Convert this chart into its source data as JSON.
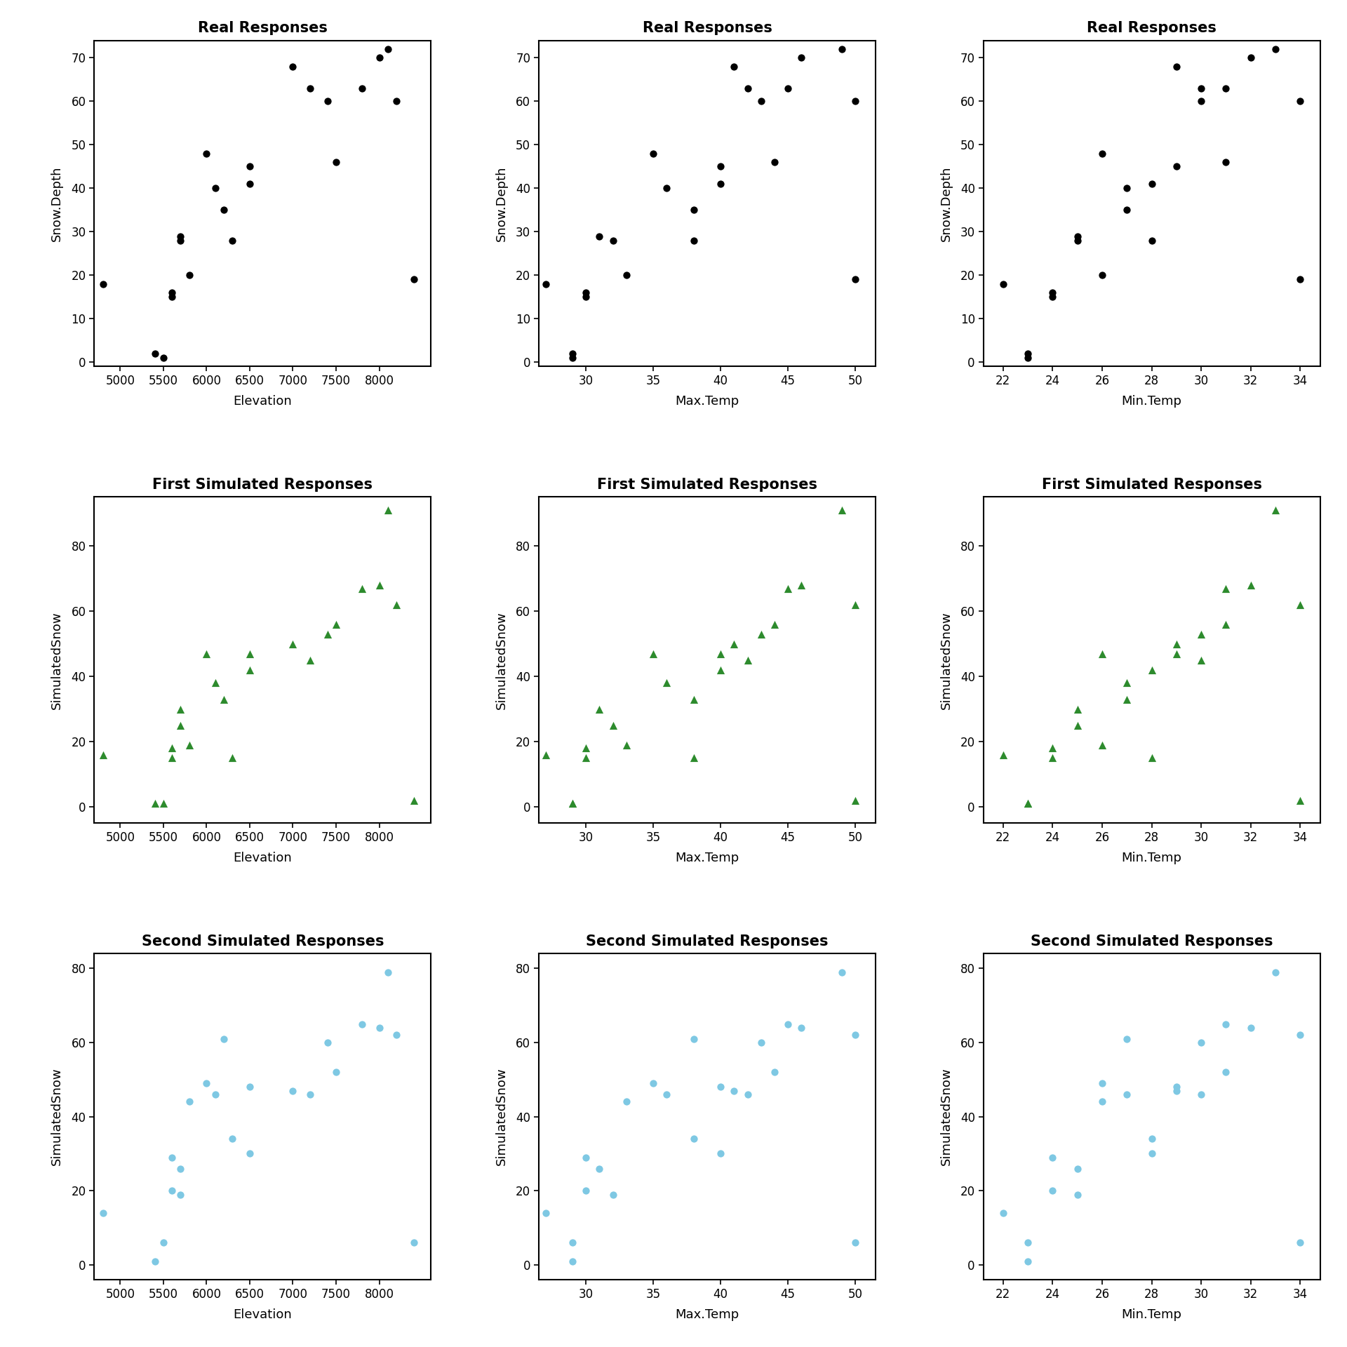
{
  "elevation": [
    4800,
    5400,
    5500,
    5600,
    5600,
    5700,
    5700,
    5800,
    6000,
    6100,
    6200,
    6300,
    6500,
    6500,
    7000,
    7200,
    7400,
    7500,
    7800,
    8000,
    8100,
    8200,
    8400
  ],
  "max_temp": [
    27,
    29,
    29,
    30,
    30,
    31,
    32,
    33,
    35,
    36,
    38,
    38,
    40,
    40,
    41,
    42,
    43,
    44,
    45,
    46,
    49,
    50,
    50
  ],
  "min_temp": [
    22,
    23,
    23,
    24,
    24,
    25,
    25,
    26,
    26,
    27,
    27,
    28,
    28,
    29,
    29,
    30,
    30,
    31,
    31,
    32,
    33,
    34,
    34
  ],
  "snow_depth": [
    18,
    2,
    1,
    16,
    15,
    29,
    28,
    20,
    48,
    40,
    35,
    28,
    41,
    45,
    68,
    63,
    60,
    46,
    63,
    70,
    72,
    60,
    19
  ],
  "sim1": [
    16,
    1,
    1,
    18,
    15,
    30,
    25,
    19,
    47,
    38,
    33,
    15,
    42,
    47,
    50,
    45,
    53,
    56,
    67,
    68,
    91,
    62,
    2
  ],
  "sim2": [
    14,
    1,
    6,
    29,
    20,
    26,
    19,
    44,
    49,
    46,
    61,
    34,
    30,
    48,
    47,
    46,
    60,
    52,
    65,
    64,
    79,
    62,
    6
  ],
  "background_color": "#ffffff",
  "dot_color": "#000000",
  "tri_color": "#2d8b2d",
  "cyan_color": "#7EC8E3",
  "row_titles": [
    "Real Responses",
    "First Simulated Responses",
    "Second Simulated Responses"
  ],
  "col_xlabels": [
    "Elevation",
    "Max.Temp",
    "Min.Temp"
  ],
  "ylabels": [
    "Snow.Depth",
    "SimulatedSnow",
    "SimulatedSnow"
  ],
  "elev_xlim": [
    4700,
    8600
  ],
  "elev_xticks": [
    5000,
    5500,
    6000,
    6500,
    7000,
    7500,
    8000
  ],
  "maxtemp_xlim": [
    26.5,
    51.5
  ],
  "maxtemp_xticks": [
    30,
    35,
    40,
    45,
    50
  ],
  "mintemp_xlim": [
    21.2,
    34.8
  ],
  "mintemp_xticks": [
    22,
    24,
    26,
    28,
    30,
    32,
    34
  ],
  "row0_ylim": [
    -1,
    74
  ],
  "row0_yticks": [
    0,
    10,
    20,
    30,
    40,
    50,
    60,
    70
  ],
  "row1_ylim": [
    -5,
    95
  ],
  "row1_yticks": [
    0,
    20,
    40,
    60,
    80
  ],
  "row2_ylim": [
    -4,
    84
  ],
  "row2_yticks": [
    0,
    20,
    40,
    60,
    80
  ]
}
